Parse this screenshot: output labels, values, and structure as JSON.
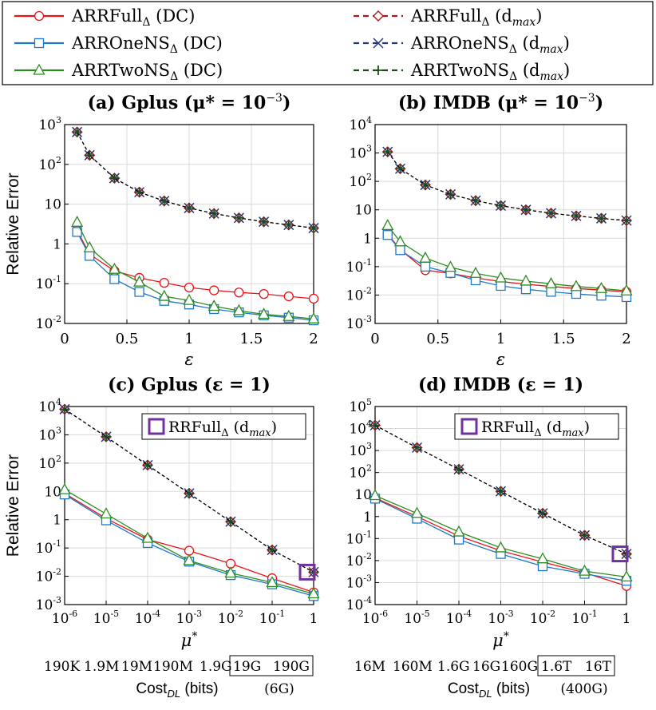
{
  "legend": {
    "entries": [
      {
        "main": "ARRFull",
        "sub": "Δ",
        "tail": " (DC)",
        "color": "#e8141a",
        "marker": "circle",
        "dash": false
      },
      {
        "main": "ARROneNS",
        "sub": "Δ",
        "tail": " (DC)",
        "color": "#1f78c8",
        "marker": "square",
        "dash": false
      },
      {
        "main": "ARRTwoNS",
        "sub": "Δ",
        "tail": " (DC)",
        "color": "#2e8b22",
        "marker": "triangle",
        "dash": false
      },
      {
        "main": "ARRFull",
        "sub": "Δ",
        "tail": " (d",
        "tailsub": "max",
        "close": ")",
        "color": "#b5121b",
        "marker": "diamond",
        "dash": true
      },
      {
        "main": "ARROneNS",
        "sub": "Δ",
        "tail": " (d",
        "tailsub": "max",
        "close": ")",
        "color": "#1f3a7a",
        "marker": "x",
        "dash": true
      },
      {
        "main": "ARRTwoNS",
        "sub": "Δ",
        "tail": " (d",
        "tailsub": "max",
        "close": ")",
        "color": "#1d4d16",
        "marker": "plus",
        "dash": true
      }
    ]
  },
  "chart_data": [
    {
      "type": "line",
      "log_y": true,
      "log_x": false,
      "title": "(a) Gplus (μ* = 10",
      "title_exp": "−3",
      "title_close": ")",
      "xlabel": "ε",
      "ylabel": "Relative Error",
      "xlim": [
        0,
        2
      ],
      "ylim_exp": [
        -2,
        3
      ],
      "x_ticks": [
        "0",
        "0.5",
        "1",
        "1.5",
        "2"
      ],
      "x_tick_values": [
        0,
        0.5,
        1,
        1.5,
        2
      ],
      "y_ticks": [
        {
          "base": "10",
          "exp": "-2"
        },
        {
          "base": "10",
          "exp": "-1"
        },
        {
          "base": "1",
          "exp": ""
        },
        {
          "base": "10",
          "exp": ""
        },
        {
          "base": "10",
          "exp": "2"
        },
        {
          "base": "10",
          "exp": "3"
        }
      ],
      "x": [
        0.1,
        0.2,
        0.4,
        0.6,
        0.8,
        1.0,
        1.2,
        1.4,
        1.6,
        1.8,
        2.0
      ],
      "series": [
        {
          "name": "ARRFull_Δ (DC)",
          "values": [
            2.2,
            0.55,
            0.21,
            0.14,
            0.105,
            0.08,
            0.068,
            0.06,
            0.055,
            0.048,
            0.042
          ]
        },
        {
          "name": "ARROneNS_Δ (DC)",
          "values": [
            2.0,
            0.5,
            0.13,
            0.062,
            0.037,
            0.03,
            0.023,
            0.019,
            0.016,
            0.014,
            0.012
          ]
        },
        {
          "name": "ARRTwoNS_Δ (DC)",
          "values": [
            3.5,
            0.8,
            0.23,
            0.11,
            0.048,
            0.038,
            0.027,
            0.021,
            0.017,
            0.015,
            0.013
          ]
        },
        {
          "name": "ARRFull_Δ (d_max)",
          "values": [
            650,
            170,
            45,
            20,
            12,
            8,
            5.8,
            4.5,
            3.6,
            3.0,
            2.5
          ]
        },
        {
          "name": "ARROneNS_Δ (d_max)",
          "values": [
            650,
            170,
            45,
            20,
            12,
            8,
            5.8,
            4.5,
            3.6,
            3.0,
            2.5
          ]
        },
        {
          "name": "ARRTwoNS_Δ (d_max)",
          "values": [
            650,
            170,
            45,
            20,
            12,
            8,
            5.8,
            4.5,
            3.6,
            3.0,
            2.5
          ]
        }
      ]
    },
    {
      "type": "line",
      "log_y": true,
      "log_x": false,
      "title": "(b) IMDB (μ* = 10",
      "title_exp": "−3",
      "title_close": ")",
      "xlabel": "ε",
      "ylabel": "",
      "xlim": [
        0,
        2
      ],
      "ylim_exp": [
        -3,
        4
      ],
      "x_ticks": [
        "0",
        "0.5",
        "1",
        "1.5",
        "2"
      ],
      "x_tick_values": [
        0,
        0.5,
        1,
        1.5,
        2
      ],
      "y_ticks": [
        {
          "base": "10",
          "exp": "-3"
        },
        {
          "base": "10",
          "exp": "-2"
        },
        {
          "base": "10",
          "exp": "-1"
        },
        {
          "base": "1",
          "exp": ""
        },
        {
          "base": "10",
          "exp": ""
        },
        {
          "base": "10",
          "exp": "2"
        },
        {
          "base": "10",
          "exp": "3"
        },
        {
          "base": "10",
          "exp": "4"
        }
      ],
      "x": [
        0.1,
        0.2,
        0.4,
        0.6,
        0.8,
        1.0,
        1.2,
        1.4,
        1.6,
        1.8,
        2.0
      ],
      "series": [
        {
          "name": "ARRFull_Δ (DC)",
          "values": [
            1.4,
            0.4,
            0.075,
            0.058,
            0.04,
            0.03,
            0.024,
            0.02,
            0.017,
            0.015,
            0.013
          ]
        },
        {
          "name": "ARROneNS_Δ (DC)",
          "values": [
            1.3,
            0.38,
            0.1,
            0.06,
            0.033,
            0.021,
            0.016,
            0.013,
            0.011,
            0.0095,
            0.0085
          ]
        },
        {
          "name": "ARRTwoNS_Δ (DC)",
          "values": [
            2.8,
            0.75,
            0.2,
            0.095,
            0.058,
            0.04,
            0.031,
            0.025,
            0.02,
            0.017,
            0.014
          ]
        },
        {
          "name": "ARRFull_Δ (d_max)",
          "values": [
            1100,
            280,
            75,
            35,
            21,
            14,
            10,
            7.6,
            6.1,
            5.0,
            4.2
          ]
        },
        {
          "name": "ARROneNS_Δ (d_max)",
          "values": [
            1100,
            280,
            75,
            35,
            21,
            14,
            10,
            7.6,
            6.1,
            5.0,
            4.2
          ]
        },
        {
          "name": "ARRTwoNS_Δ (d_max)",
          "values": [
            1100,
            280,
            75,
            35,
            21,
            14,
            10,
            7.6,
            6.1,
            5.0,
            4.2
          ]
        }
      ]
    },
    {
      "type": "line",
      "log_y": true,
      "log_x": true,
      "title": "(c) Gplus (ε = 1)",
      "xlabel": "μ*",
      "ylabel": "Relative Error",
      "xlim_exp": [
        -6,
        0
      ],
      "ylim_exp": [
        -3,
        4
      ],
      "x_ticks": [
        {
          "base": "10",
          "exp": "-6"
        },
        {
          "base": "10",
          "exp": "-5"
        },
        {
          "base": "10",
          "exp": "-4"
        },
        {
          "base": "10",
          "exp": "-3"
        },
        {
          "base": "10",
          "exp": "-2"
        },
        {
          "base": "10",
          "exp": "-1"
        },
        {
          "base": "1",
          "exp": ""
        }
      ],
      "y_ticks": [
        {
          "base": "10",
          "exp": "-3"
        },
        {
          "base": "10",
          "exp": "-2"
        },
        {
          "base": "10",
          "exp": "-1"
        },
        {
          "base": "1",
          "exp": ""
        },
        {
          "base": "10",
          "exp": ""
        },
        {
          "base": "10",
          "exp": "2"
        },
        {
          "base": "10",
          "exp": "3"
        },
        {
          "base": "10",
          "exp": "4"
        }
      ],
      "x": [
        1e-06,
        1e-05,
        0.0001,
        0.001,
        0.01,
        0.1,
        1
      ],
      "series": [
        {
          "name": "ARRFull_Δ (DC)",
          "values": [
            8.5,
            1.1,
            0.2,
            0.08,
            0.028,
            0.0085,
            0.0027
          ]
        },
        {
          "name": "ARROneNS_Δ (DC)",
          "values": [
            7.8,
            0.95,
            0.15,
            0.033,
            0.011,
            0.0052,
            0.002
          ]
        },
        {
          "name": "ARRTwoNS_Δ (DC)",
          "values": [
            11.5,
            1.6,
            0.22,
            0.036,
            0.013,
            0.006,
            0.0024
          ]
        },
        {
          "name": "ARRFull_Δ (d_max)",
          "values": [
            8000,
            850,
            85,
            8.5,
            0.85,
            0.085,
            0.014
          ]
        },
        {
          "name": "ARROneNS_Δ (d_max)",
          "values": [
            8000,
            850,
            85,
            8.5,
            0.85,
            0.085,
            0.014
          ]
        },
        {
          "name": "ARRTwoNS_Δ (d_max)",
          "values": [
            8000,
            850,
            85,
            8.5,
            0.85,
            0.085,
            0.014
          ]
        }
      ],
      "annotation": {
        "main": "RRFull",
        "sub": "Δ",
        "tail": " (d",
        "tailsub": "max",
        "close": ")",
        "value": 0.014,
        "color": "#7030a0"
      },
      "cost": {
        "values": [
          "190K",
          "1.9M",
          "19M",
          "190M",
          "1.9G"
        ],
        "boxed": [
          "19G",
          "190G"
        ],
        "note": "(6G)",
        "label": "Cost",
        "label_sub": "DL",
        "label_tail": " (bits)"
      }
    },
    {
      "type": "line",
      "log_y": true,
      "log_x": true,
      "title": "(d) IMDB (ε = 1)",
      "xlabel": "μ*",
      "ylabel": "",
      "xlim_exp": [
        -6,
        0
      ],
      "ylim_exp": [
        -4,
        5
      ],
      "x_ticks": [
        {
          "base": "10",
          "exp": "-6"
        },
        {
          "base": "10",
          "exp": "-5"
        },
        {
          "base": "10",
          "exp": "-4"
        },
        {
          "base": "10",
          "exp": "-3"
        },
        {
          "base": "10",
          "exp": "-2"
        },
        {
          "base": "10",
          "exp": "-1"
        },
        {
          "base": "1",
          "exp": ""
        }
      ],
      "y_ticks": [
        {
          "base": "10",
          "exp": "-4"
        },
        {
          "base": "10",
          "exp": "-3"
        },
        {
          "base": "10",
          "exp": "-2"
        },
        {
          "base": "10",
          "exp": "-1"
        },
        {
          "base": "1",
          "exp": ""
        },
        {
          "base": "10",
          "exp": ""
        },
        {
          "base": "10",
          "exp": "2"
        },
        {
          "base": "10",
          "exp": "3"
        },
        {
          "base": "10",
          "exp": "4"
        },
        {
          "base": "10",
          "exp": "5"
        }
      ],
      "x": [
        1e-06,
        1e-05,
        0.0001,
        0.001,
        0.01,
        0.1,
        1
      ],
      "series": [
        {
          "name": "ARRFull_Δ (DC)",
          "values": [
            7.0,
            1.0,
            0.13,
            0.028,
            0.0085,
            0.0028,
            0.0007
          ]
        },
        {
          "name": "ARROneNS_Δ (DC)",
          "values": [
            6.5,
            0.8,
            0.09,
            0.02,
            0.0055,
            0.0025,
            0.0012
          ]
        },
        {
          "name": "ARRTwoNS_Δ (DC)",
          "values": [
            9.0,
            1.4,
            0.2,
            0.038,
            0.012,
            0.0033,
            0.0018
          ]
        },
        {
          "name": "ARRFull_Δ (d_max)",
          "values": [
            14000,
            1350,
            140,
            14,
            1.4,
            0.14,
            0.02
          ]
        },
        {
          "name": "ARROneNS_Δ (d_max)",
          "values": [
            14000,
            1350,
            140,
            14,
            1.4,
            0.14,
            0.02
          ]
        },
        {
          "name": "ARRTwoNS_Δ (d_max)",
          "values": [
            14000,
            1350,
            140,
            14,
            1.4,
            0.14,
            0.02
          ]
        }
      ],
      "annotation": {
        "main": "RRFull",
        "sub": "Δ",
        "tail": " (d",
        "tailsub": "max",
        "close": ")",
        "value": 0.02,
        "color": "#7030a0"
      },
      "cost": {
        "values": [
          "16M",
          "160M",
          "1.6G",
          "16G",
          "160G"
        ],
        "boxed": [
          "1.6T",
          "16T"
        ],
        "note": "(400G)",
        "label": "Cost",
        "label_sub": "DL",
        "label_tail": " (bits)"
      }
    }
  ]
}
